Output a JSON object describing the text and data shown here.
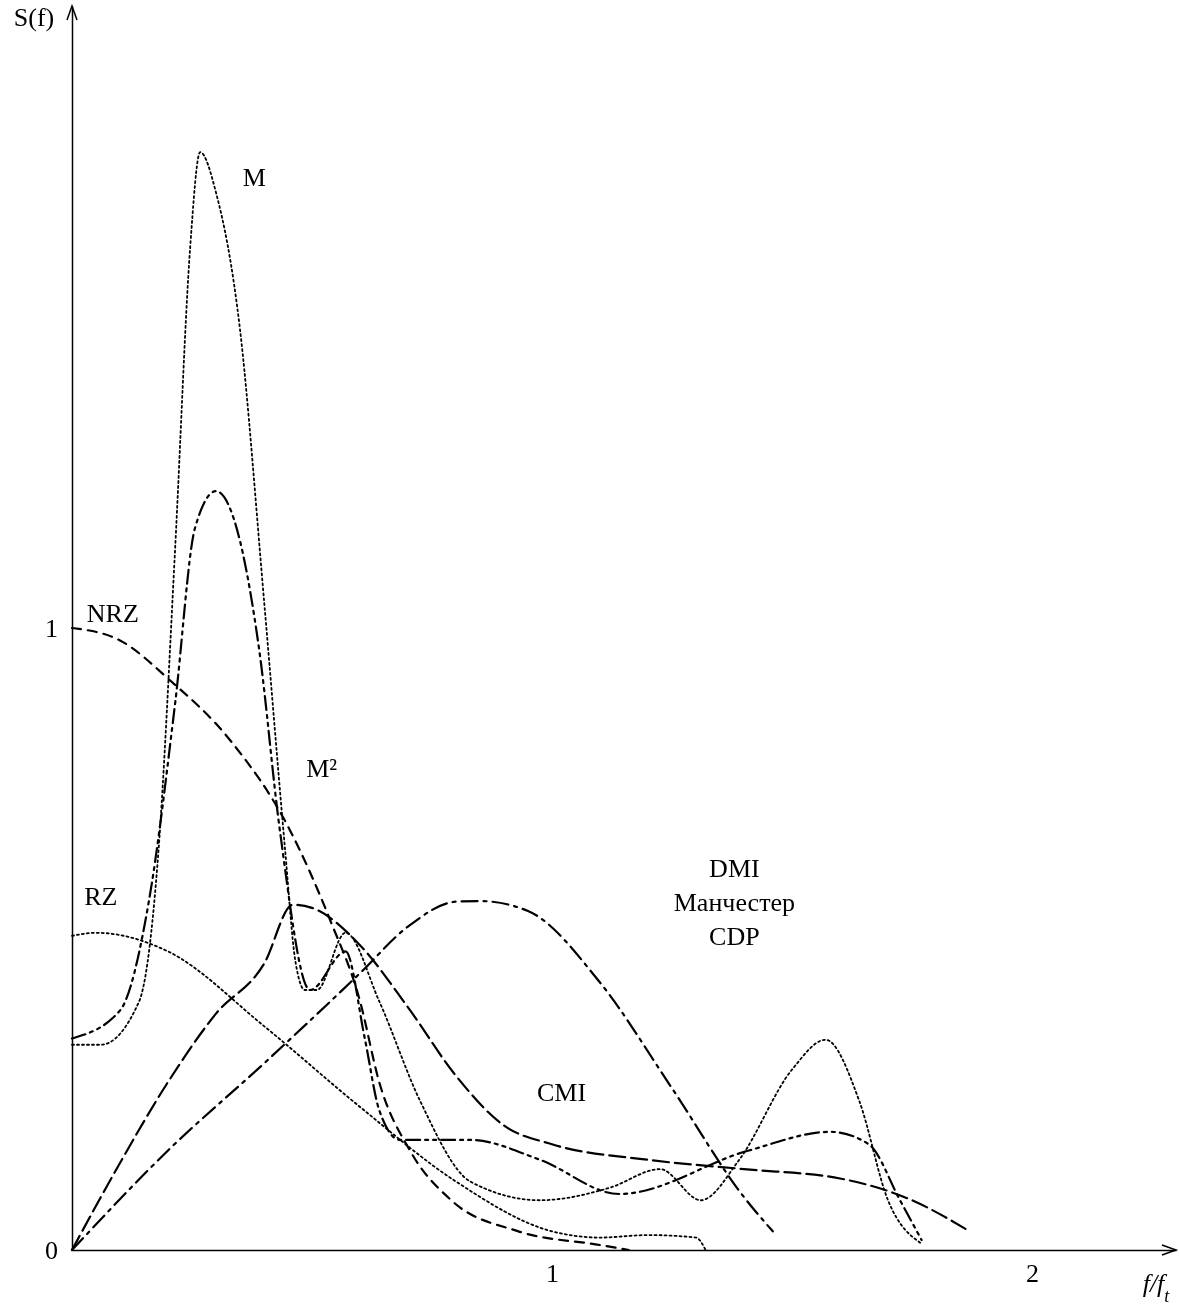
{
  "chart_data": {
    "type": "line",
    "xlabel": "f/f$_{t}$",
    "ylabel": "S(f)",
    "xlim": [
      0,
      2.3
    ],
    "ylim": [
      0,
      2.0
    ],
    "xticks": [
      1,
      2
    ],
    "yticks": [
      0,
      1
    ],
    "grid": false,
    "legend": false,
    "marker": "none",
    "series": [
      {
        "name": "NRZ",
        "color": "#000000",
        "line_style": "dashed",
        "x": [
          0,
          0.1,
          0.204,
          0.329,
          0.454,
          0.538,
          0.6,
          0.64,
          0.704,
          0.79,
          0.93,
          1.1,
          1.16
        ],
        "values": [
          1.0,
          0.98,
          0.916,
          0.82,
          0.675,
          0.53,
          0.4,
          0.27,
          0.16,
          0.08,
          0.03,
          0.008,
          0
        ]
      },
      {
        "name": "RZ",
        "color": "#000000",
        "line_style": "dotted",
        "x": [
          0,
          0.05,
          0.2,
          0.4,
          0.6,
          0.8,
          1.0,
          1.1,
          1.2,
          1.3,
          1.32
        ],
        "values": [
          0.505,
          0.51,
          0.48,
          0.36,
          0.23,
          0.11,
          0.03,
          0.02,
          0.024,
          0.02,
          0
        ]
      },
      {
        "name": "M",
        "color": "#000000",
        "line_style": "dotted",
        "x": [
          0,
          0.06,
          0.14,
          0.18,
          0.215,
          0.246,
          0.267,
          0.3,
          0.35,
          0.4,
          0.444,
          0.465,
          0.485,
          0.51,
          0.57,
          0.64,
          0.725,
          0.83,
          0.975,
          1.12,
          1.225,
          1.31,
          1.39,
          1.5,
          1.57,
          1.64,
          1.7,
          1.77
        ],
        "values": [
          0.33,
          0.33,
          0.4,
          0.64,
          1.13,
          1.61,
          1.765,
          1.7,
          1.48,
          1.045,
          0.643,
          0.466,
          0.418,
          0.418,
          0.51,
          0.4,
          0.24,
          0.11,
          0.08,
          0.1,
          0.13,
          0.08,
          0.145,
          0.29,
          0.338,
          0.24,
          0.08,
          0.01
        ]
      },
      {
        "name": "M²",
        "color": "#000000",
        "line_style": "dashdotdot",
        "x": [
          0,
          0.1,
          0.16,
          0.215,
          0.256,
          0.3,
          0.35,
          0.39,
          0.433,
          0.496,
          0.57,
          0.61,
          0.64,
          0.683,
          0.83,
          0.975,
          1.14,
          1.41,
          1.58,
          1.66,
          1.725,
          1.77
        ],
        "values": [
          0.34,
          0.385,
          0.56,
          0.88,
          1.16,
          1.22,
          1.14,
          0.965,
          0.675,
          0.418,
          0.48,
          0.34,
          0.225,
          0.177,
          0.177,
          0.145,
          0.09,
          0.16,
          0.19,
          0.17,
          0.08,
          0.016
        ]
      },
      {
        "name": "CMI",
        "color": "#000000",
        "line_style": "longdashed",
        "x": [
          0,
          0.1,
          0.2,
          0.3,
          0.4,
          0.46,
          0.5,
          0.6,
          0.7,
          0.8,
          0.9,
          1.0,
          1.2,
          1.4,
          1.6,
          1.75,
          1.87
        ],
        "values": [
          0,
          0.14,
          0.27,
          0.38,
          0.46,
          0.555,
          0.55,
          0.49,
          0.39,
          0.28,
          0.2,
          0.17,
          0.145,
          0.13,
          0.115,
          0.08,
          0.03
        ]
      },
      {
        "name": "DMI Манчестер CDP",
        "color": "#000000",
        "line_style": "dashdot",
        "x": [
          0,
          0.2,
          0.4,
          0.6,
          0.7,
          0.8,
          0.85,
          0.95,
          1.1,
          1.25,
          1.4,
          1.46
        ],
        "values": [
          0,
          0.16,
          0.3,
          0.445,
          0.52,
          0.56,
          0.561,
          0.545,
          0.43,
          0.26,
          0.085,
          0.03
        ]
      }
    ]
  }
}
